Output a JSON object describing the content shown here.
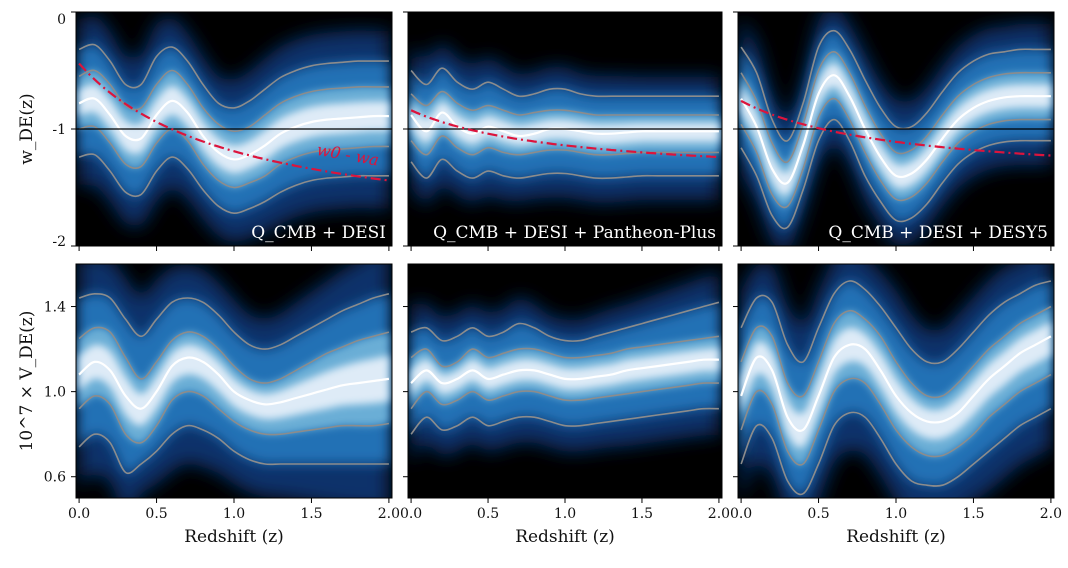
{
  "chart_data": [
    {
      "type": "area",
      "panel": "top-left",
      "label": "Q_CMB + DESI",
      "ylabel": "w_DE(z)",
      "xlim": [
        -0.02,
        2.02
      ],
      "ylim": [
        -2,
        0
      ],
      "yticks": [
        0,
        -1,
        -2
      ],
      "ytick_labels": [
        "0",
        "-1",
        "-2"
      ],
      "x": [
        0.0,
        0.1,
        0.2,
        0.3,
        0.4,
        0.5,
        0.6,
        0.7,
        0.8,
        0.9,
        1.0,
        1.1,
        1.2,
        1.3,
        1.4,
        1.5,
        1.6,
        1.7,
        1.8,
        1.9,
        2.0
      ],
      "series": [
        {
          "role": "upper_2sigma",
          "values": [
            -0.32,
            -0.28,
            -0.42,
            -0.62,
            -0.62,
            -0.38,
            -0.3,
            -0.42,
            -0.62,
            -0.78,
            -0.82,
            -0.76,
            -0.66,
            -0.56,
            -0.5,
            -0.46,
            -0.44,
            -0.43,
            -0.42,
            -0.42,
            -0.42
          ]
        },
        {
          "role": "upper_1sigma",
          "values": [
            -0.55,
            -0.5,
            -0.62,
            -0.8,
            -0.82,
            -0.62,
            -0.5,
            -0.62,
            -0.82,
            -0.96,
            -1.02,
            -0.98,
            -0.88,
            -0.78,
            -0.72,
            -0.68,
            -0.66,
            -0.65,
            -0.64,
            -0.64,
            -0.64
          ]
        },
        {
          "role": "median",
          "values": [
            -0.78,
            -0.74,
            -0.88,
            -1.06,
            -1.08,
            -0.88,
            -0.76,
            -0.86,
            -1.06,
            -1.2,
            -1.26,
            -1.22,
            -1.14,
            -1.04,
            -0.98,
            -0.94,
            -0.92,
            -0.91,
            -0.9,
            -0.89,
            -0.89
          ]
        },
        {
          "role": "lower_1sigma",
          "values": [
            -1.0,
            -0.98,
            -1.12,
            -1.3,
            -1.32,
            -1.12,
            -1.0,
            -1.1,
            -1.3,
            -1.44,
            -1.5,
            -1.46,
            -1.4,
            -1.3,
            -1.24,
            -1.2,
            -1.18,
            -1.17,
            -1.16,
            -1.15,
            -1.15
          ]
        },
        {
          "role": "lower_2sigma",
          "values": [
            -1.24,
            -1.22,
            -1.36,
            -1.54,
            -1.56,
            -1.36,
            -1.24,
            -1.34,
            -1.52,
            -1.66,
            -1.72,
            -1.68,
            -1.62,
            -1.54,
            -1.48,
            -1.44,
            -1.42,
            -1.41,
            -1.4,
            -1.4,
            -1.4
          ]
        }
      ],
      "reference": {
        "label": "w0 - wa",
        "w0": -0.44,
        "wa": -1.5
      },
      "hline": -1
    },
    {
      "type": "area",
      "panel": "top-middle",
      "label": "Q_CMB + DESI + Pantheon-Plus",
      "xlim": [
        -0.02,
        2.02
      ],
      "ylim": [
        -2,
        0
      ],
      "x": [
        0.0,
        0.1,
        0.2,
        0.3,
        0.4,
        0.5,
        0.6,
        0.7,
        0.8,
        0.9,
        1.0,
        1.1,
        1.2,
        1.3,
        1.4,
        1.5,
        1.6,
        1.7,
        1.8,
        1.9,
        2.0
      ],
      "series": [
        {
          "role": "upper_2sigma",
          "values": [
            -0.5,
            -0.62,
            -0.48,
            -0.6,
            -0.66,
            -0.6,
            -0.66,
            -0.72,
            -0.7,
            -0.66,
            -0.66,
            -0.7,
            -0.72,
            -0.72,
            -0.72,
            -0.72,
            -0.72,
            -0.72,
            -0.72,
            -0.72,
            -0.72
          ]
        },
        {
          "role": "upper_1sigma",
          "values": [
            -0.7,
            -0.8,
            -0.68,
            -0.78,
            -0.84,
            -0.8,
            -0.84,
            -0.88,
            -0.86,
            -0.84,
            -0.84,
            -0.86,
            -0.88,
            -0.88,
            -0.88,
            -0.88,
            -0.88,
            -0.88,
            -0.88,
            -0.88,
            -0.88
          ]
        },
        {
          "role": "median",
          "values": [
            -0.88,
            -1.02,
            -0.86,
            -0.98,
            -1.04,
            -0.98,
            -1.02,
            -1.06,
            -1.04,
            -1.0,
            -1.0,
            -1.02,
            -1.04,
            -1.04,
            -1.03,
            -1.02,
            -1.02,
            -1.02,
            -1.02,
            -1.02,
            -1.02
          ]
        },
        {
          "role": "lower_1sigma",
          "values": [
            -1.1,
            -1.22,
            -1.06,
            -1.16,
            -1.22,
            -1.16,
            -1.2,
            -1.22,
            -1.2,
            -1.18,
            -1.18,
            -1.2,
            -1.22,
            -1.22,
            -1.21,
            -1.2,
            -1.2,
            -1.2,
            -1.2,
            -1.2,
            -1.2
          ]
        },
        {
          "role": "lower_2sigma",
          "values": [
            -1.28,
            -1.42,
            -1.26,
            -1.36,
            -1.42,
            -1.36,
            -1.4,
            -1.42,
            -1.4,
            -1.38,
            -1.38,
            -1.4,
            -1.42,
            -1.42,
            -1.41,
            -1.4,
            -1.4,
            -1.4,
            -1.4,
            -1.4,
            -1.4
          ]
        }
      ],
      "reference": {
        "w0": -0.84,
        "wa": -0.6
      },
      "hline": -1
    },
    {
      "type": "area",
      "panel": "top-right",
      "label": "Q_CMB + DESI + DESY5",
      "xlim": [
        -0.02,
        2.02
      ],
      "ylim": [
        -2,
        0
      ],
      "x": [
        0.0,
        0.1,
        0.2,
        0.3,
        0.4,
        0.5,
        0.6,
        0.7,
        0.8,
        0.9,
        1.0,
        1.1,
        1.2,
        1.3,
        1.4,
        1.5,
        1.6,
        1.7,
        1.8,
        1.9,
        2.0
      ],
      "series": [
        {
          "role": "upper_2sigma",
          "values": [
            -0.3,
            -0.52,
            -0.92,
            -1.1,
            -0.78,
            -0.3,
            -0.16,
            -0.32,
            -0.58,
            -0.82,
            -0.98,
            -0.98,
            -0.86,
            -0.68,
            -0.52,
            -0.42,
            -0.36,
            -0.34,
            -0.32,
            -0.32,
            -0.32
          ]
        },
        {
          "role": "upper_1sigma",
          "values": [
            -0.52,
            -0.76,
            -1.12,
            -1.28,
            -0.96,
            -0.5,
            -0.34,
            -0.52,
            -0.8,
            -1.04,
            -1.2,
            -1.18,
            -1.06,
            -0.88,
            -0.72,
            -0.62,
            -0.56,
            -0.53,
            -0.52,
            -0.52,
            -0.52
          ]
        },
        {
          "role": "median",
          "values": [
            -0.74,
            -0.98,
            -1.34,
            -1.46,
            -1.14,
            -0.7,
            -0.54,
            -0.72,
            -1.0,
            -1.24,
            -1.4,
            -1.38,
            -1.26,
            -1.08,
            -0.92,
            -0.82,
            -0.76,
            -0.73,
            -0.72,
            -0.72,
            -0.72
          ]
        },
        {
          "role": "lower_1sigma",
          "values": [
            -0.96,
            -1.2,
            -1.56,
            -1.66,
            -1.34,
            -0.9,
            -0.74,
            -0.92,
            -1.2,
            -1.44,
            -1.6,
            -1.58,
            -1.46,
            -1.28,
            -1.12,
            -1.02,
            -0.96,
            -0.93,
            -0.92,
            -0.92,
            -0.92
          ]
        },
        {
          "role": "lower_2sigma",
          "values": [
            -1.16,
            -1.4,
            -1.74,
            -1.84,
            -1.52,
            -1.1,
            -0.92,
            -1.1,
            -1.4,
            -1.62,
            -1.78,
            -1.76,
            -1.64,
            -1.46,
            -1.3,
            -1.2,
            -1.14,
            -1.11,
            -1.1,
            -1.1,
            -1.1
          ]
        }
      ],
      "reference": {
        "w0": -0.76,
        "wa": -0.7
      },
      "hline": -1
    },
    {
      "type": "area",
      "panel": "bottom-left",
      "xlabel": "Redshift (z)",
      "ylabel": "10^7 × V_DE(z)",
      "xlim": [
        -0.02,
        2.02
      ],
      "ylim": [
        0.5,
        1.6
      ],
      "xticks": [
        0.0,
        0.5,
        1.0,
        1.5,
        2.0
      ],
      "xtick_labels": [
        "0.0",
        "0.5",
        "1.0",
        "1.5",
        "2.0"
      ],
      "yticks": [
        0.6,
        1.0,
        1.4
      ],
      "ytick_labels": [
        "0.6",
        "1.0",
        "1.4"
      ],
      "x": [
        0.0,
        0.1,
        0.2,
        0.3,
        0.4,
        0.5,
        0.6,
        0.7,
        0.8,
        0.9,
        1.0,
        1.1,
        1.2,
        1.3,
        1.4,
        1.5,
        1.6,
        1.7,
        1.8,
        1.9,
        2.0
      ],
      "series": [
        {
          "role": "upper_2sigma",
          "values": [
            1.44,
            1.46,
            1.44,
            1.34,
            1.26,
            1.34,
            1.42,
            1.44,
            1.42,
            1.36,
            1.28,
            1.22,
            1.2,
            1.22,
            1.26,
            1.3,
            1.34,
            1.38,
            1.41,
            1.44,
            1.46
          ]
        },
        {
          "role": "upper_1sigma",
          "values": [
            1.25,
            1.3,
            1.28,
            1.16,
            1.06,
            1.14,
            1.24,
            1.28,
            1.26,
            1.2,
            1.12,
            1.06,
            1.04,
            1.06,
            1.1,
            1.14,
            1.18,
            1.21,
            1.24,
            1.26,
            1.28
          ]
        },
        {
          "role": "median",
          "values": [
            1.08,
            1.14,
            1.1,
            0.98,
            0.92,
            1.0,
            1.12,
            1.16,
            1.14,
            1.08,
            1.0,
            0.96,
            0.94,
            0.95,
            0.97,
            0.99,
            1.01,
            1.03,
            1.04,
            1.05,
            1.06
          ]
        },
        {
          "role": "lower_1sigma",
          "values": [
            0.92,
            0.98,
            0.94,
            0.8,
            0.76,
            0.84,
            0.96,
            1.0,
            0.98,
            0.92,
            0.86,
            0.82,
            0.8,
            0.8,
            0.81,
            0.82,
            0.83,
            0.84,
            0.84,
            0.84,
            0.85
          ]
        },
        {
          "role": "lower_2sigma",
          "values": [
            0.74,
            0.8,
            0.76,
            0.62,
            0.66,
            0.72,
            0.8,
            0.84,
            0.82,
            0.78,
            0.72,
            0.68,
            0.66,
            0.66,
            0.66,
            0.66,
            0.66,
            0.66,
            0.66,
            0.66,
            0.66
          ]
        }
      ]
    },
    {
      "type": "area",
      "panel": "bottom-middle",
      "xlabel": "Redshift (z)",
      "xlim": [
        -0.02,
        2.02
      ],
      "ylim": [
        0.5,
        1.6
      ],
      "xticks": [
        0.0,
        0.5,
        1.0,
        1.5,
        2.0
      ],
      "xtick_labels": [
        "0.0",
        "0.5",
        "1.0",
        "1.5",
        "2.0"
      ],
      "x": [
        0.0,
        0.1,
        0.2,
        0.3,
        0.4,
        0.5,
        0.6,
        0.7,
        0.8,
        0.9,
        1.0,
        1.1,
        1.2,
        1.3,
        1.4,
        1.5,
        1.6,
        1.7,
        1.8,
        1.9,
        2.0
      ],
      "series": [
        {
          "role": "upper_2sigma",
          "values": [
            1.28,
            1.3,
            1.24,
            1.26,
            1.3,
            1.26,
            1.28,
            1.32,
            1.3,
            1.26,
            1.24,
            1.24,
            1.26,
            1.28,
            1.3,
            1.32,
            1.34,
            1.36,
            1.38,
            1.4,
            1.42
          ]
        },
        {
          "role": "upper_1sigma",
          "values": [
            1.16,
            1.2,
            1.12,
            1.14,
            1.2,
            1.16,
            1.18,
            1.2,
            1.2,
            1.18,
            1.16,
            1.16,
            1.17,
            1.18,
            1.2,
            1.21,
            1.22,
            1.23,
            1.24,
            1.25,
            1.26
          ]
        },
        {
          "role": "median",
          "values": [
            1.04,
            1.1,
            1.04,
            1.06,
            1.1,
            1.06,
            1.08,
            1.1,
            1.1,
            1.08,
            1.06,
            1.06,
            1.07,
            1.08,
            1.1,
            1.11,
            1.12,
            1.13,
            1.14,
            1.15,
            1.15
          ]
        },
        {
          "role": "lower_1sigma",
          "values": [
            0.92,
            1.0,
            0.94,
            0.96,
            1.0,
            0.96,
            0.98,
            1.0,
            1.0,
            0.98,
            0.96,
            0.96,
            0.97,
            0.98,
            0.99,
            1.0,
            1.01,
            1.02,
            1.03,
            1.04,
            1.04
          ]
        },
        {
          "role": "lower_2sigma",
          "values": [
            0.8,
            0.88,
            0.82,
            0.84,
            0.88,
            0.84,
            0.86,
            0.88,
            0.88,
            0.86,
            0.84,
            0.84,
            0.85,
            0.86,
            0.87,
            0.88,
            0.89,
            0.9,
            0.91,
            0.92,
            0.92
          ]
        }
      ]
    },
    {
      "type": "area",
      "panel": "bottom-right",
      "xlabel": "Redshift (z)",
      "xlim": [
        -0.02,
        2.02
      ],
      "ylim": [
        0.5,
        1.6
      ],
      "xticks": [
        0.0,
        0.5,
        1.0,
        1.5,
        2.0
      ],
      "xtick_labels": [
        "0.0",
        "0.5",
        "1.0",
        "1.5",
        "2.0"
      ],
      "x": [
        0.0,
        0.1,
        0.2,
        0.3,
        0.4,
        0.5,
        0.6,
        0.7,
        0.8,
        0.9,
        1.0,
        1.1,
        1.2,
        1.3,
        1.4,
        1.5,
        1.6,
        1.7,
        1.8,
        1.9,
        2.0
      ],
      "series": [
        {
          "role": "upper_2sigma",
          "values": [
            1.3,
            1.44,
            1.42,
            1.22,
            1.14,
            1.3,
            1.46,
            1.52,
            1.48,
            1.4,
            1.3,
            1.2,
            1.14,
            1.14,
            1.2,
            1.28,
            1.36,
            1.42,
            1.46,
            1.5,
            1.52
          ]
        },
        {
          "role": "upper_1sigma",
          "values": [
            1.14,
            1.3,
            1.26,
            1.04,
            0.98,
            1.14,
            1.32,
            1.38,
            1.34,
            1.26,
            1.14,
            1.04,
            0.98,
            0.98,
            1.04,
            1.12,
            1.2,
            1.26,
            1.32,
            1.36,
            1.4
          ]
        },
        {
          "role": "median",
          "values": [
            0.98,
            1.16,
            1.1,
            0.88,
            0.82,
            0.98,
            1.16,
            1.22,
            1.2,
            1.1,
            0.98,
            0.9,
            0.86,
            0.86,
            0.9,
            0.98,
            1.06,
            1.12,
            1.18,
            1.22,
            1.26
          ]
        },
        {
          "role": "lower_1sigma",
          "values": [
            0.82,
            1.0,
            0.94,
            0.72,
            0.66,
            0.82,
            1.0,
            1.06,
            1.04,
            0.94,
            0.82,
            0.74,
            0.7,
            0.7,
            0.74,
            0.8,
            0.88,
            0.94,
            1.0,
            1.04,
            1.08
          ]
        },
        {
          "role": "lower_2sigma",
          "values": [
            0.66,
            0.84,
            0.78,
            0.58,
            0.52,
            0.66,
            0.84,
            0.9,
            0.88,
            0.78,
            0.66,
            0.58,
            0.56,
            0.56,
            0.6,
            0.66,
            0.72,
            0.78,
            0.84,
            0.88,
            0.92
          ]
        }
      ]
    }
  ],
  "colors": {
    "panel_background": "#000000",
    "outer_band": "#08306b",
    "mid_band": "#2171b5",
    "inner_band": "#6baed6",
    "core_band": "#deebf7",
    "median_line": "#ffffff",
    "sigma_contours": "#8c8c8c",
    "reference_line": "#dc143c",
    "hline": "#000000"
  }
}
